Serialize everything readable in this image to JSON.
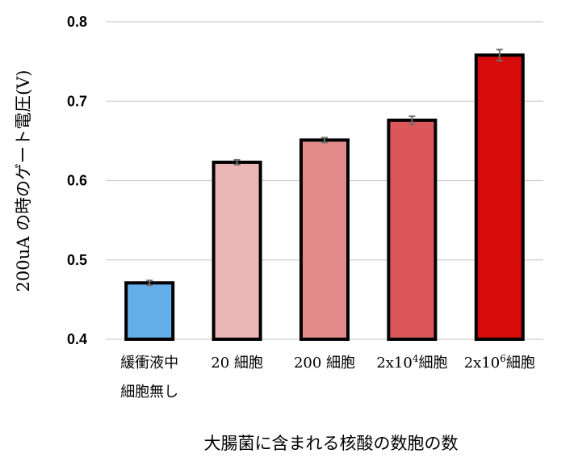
{
  "chart_data": {
    "type": "bar",
    "title": "",
    "xlabel": "大腸菌に含まれる核酸の数胞の数",
    "ylabel": "200uA の時のゲート電圧(V)",
    "ylim": [
      0.4,
      0.8
    ],
    "yticks": [
      "0.4",
      "0.5",
      "0.6",
      "0.7",
      "0.8"
    ],
    "grid": "horizontal",
    "categories": [
      {
        "lines": [
          [
            {
              "t": "緩衝液中"
            }
          ],
          [
            {
              "t": "細胞無し"
            }
          ]
        ]
      },
      {
        "lines": [
          [
            {
              "t": "20 細胞"
            }
          ]
        ]
      },
      {
        "lines": [
          [
            {
              "t": "200 細胞"
            }
          ]
        ]
      },
      {
        "lines": [
          [
            {
              "t": "2x10"
            },
            {
              "t": "4",
              "sup": true
            },
            {
              "t": "細胞"
            }
          ]
        ]
      },
      {
        "lines": [
          [
            {
              "t": "2x10"
            },
            {
              "t": "6",
              "sup": true
            },
            {
              "t": "細胞"
            }
          ]
        ]
      }
    ],
    "values": [
      0.471,
      0.623,
      0.651,
      0.676,
      0.758
    ],
    "errors": [
      0.003,
      0.003,
      0.003,
      0.005,
      0.007
    ],
    "colors": [
      "#64aeea",
      "#ecb5b6",
      "#e38b8b",
      "#dc5759",
      "#d80b0b"
    ]
  }
}
